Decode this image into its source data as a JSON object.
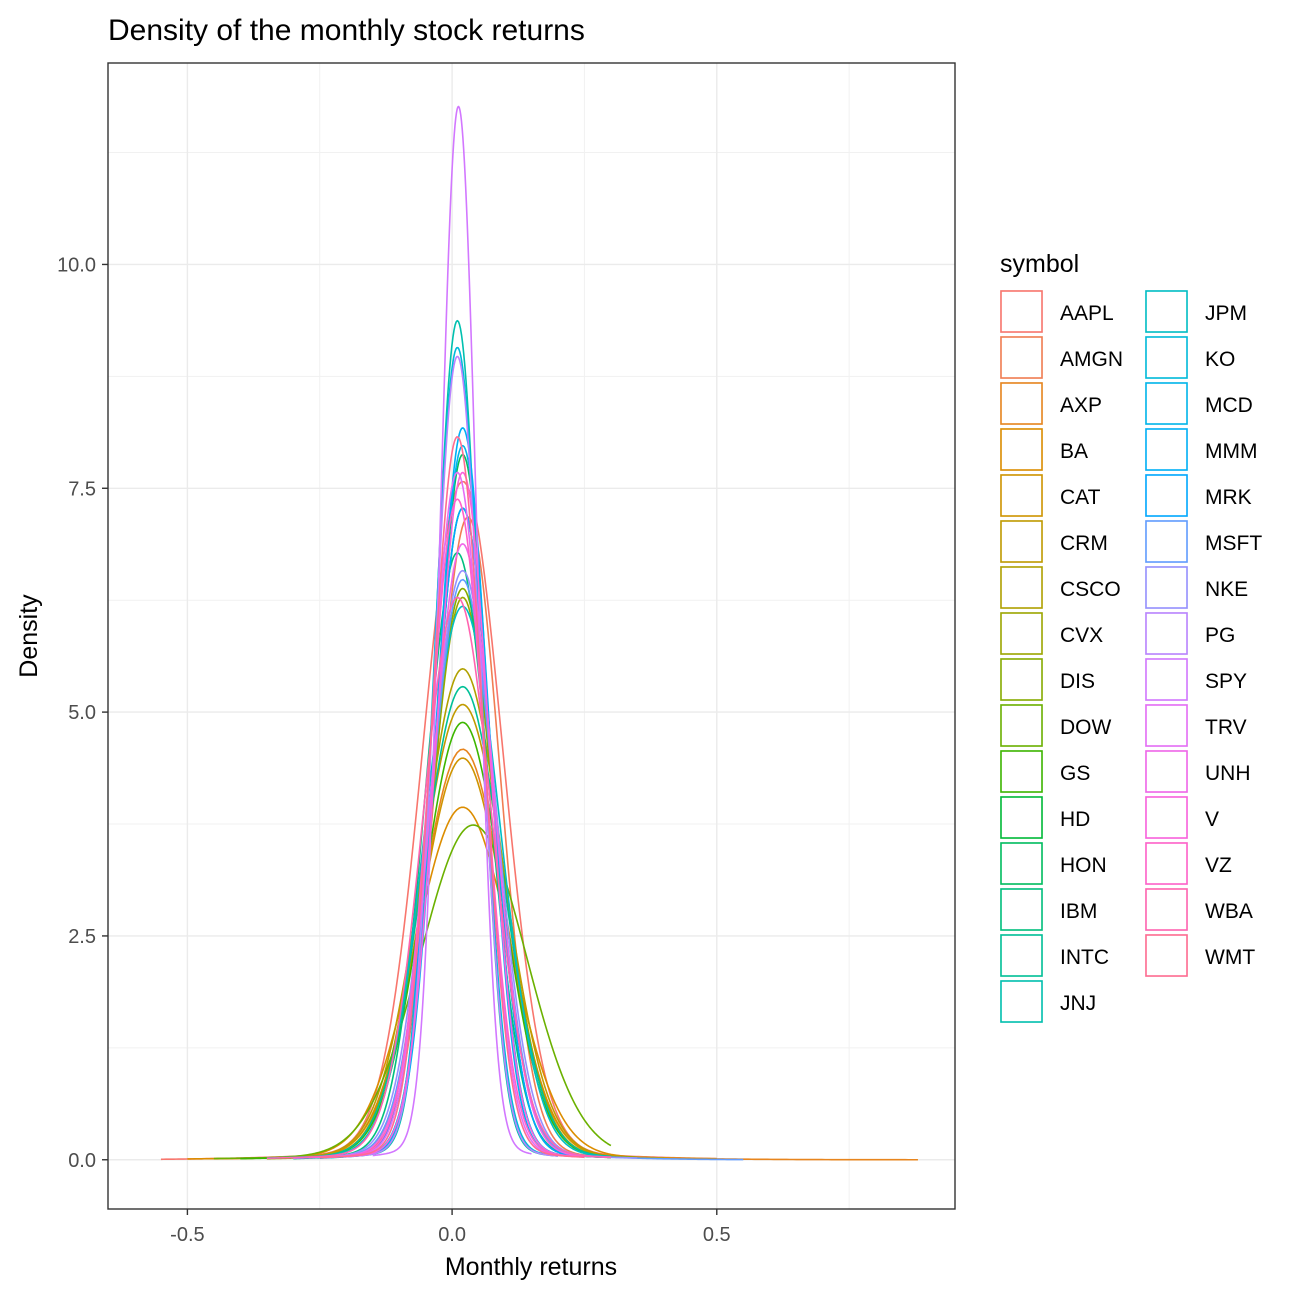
{
  "chart_data": {
    "type": "line",
    "title": "Density of the monthly stock returns",
    "xlabel": "Monthly returns",
    "ylabel": "Density",
    "xlim": [
      -0.65,
      0.95
    ],
    "ylim": [
      -0.55,
      12.25
    ],
    "xticks": [
      -0.5,
      0.0,
      0.5
    ],
    "xtick_labels": [
      "-0.5",
      "0.0",
      "0.5"
    ],
    "yticks": [
      0.0,
      2.5,
      5.0,
      7.5,
      10.0
    ],
    "ytick_labels": [
      "0.0",
      "2.5",
      "5.0",
      "7.5",
      "10.0"
    ],
    "grid": true,
    "legend": {
      "title": "symbol",
      "placement": "right",
      "columns": 2
    },
    "series": [
      {
        "name": "AAPL",
        "color": "#F8766D",
        "peak_x": 0.02,
        "peak_y": 7.6,
        "sd": 0.075,
        "xmin": -0.55,
        "xmax": 0.5
      },
      {
        "name": "AMGN",
        "color": "#F17D52",
        "peak_x": 0.03,
        "peak_y": 7.2,
        "sd": 0.06,
        "xmin": -0.3,
        "xmax": 0.3
      },
      {
        "name": "AXP",
        "color": "#E7851E",
        "peak_x": 0.02,
        "peak_y": 4.6,
        "sd": 0.08,
        "xmin": -0.45,
        "xmax": 0.88
      },
      {
        "name": "BA",
        "color": "#DC8D00",
        "peak_x": 0.02,
        "peak_y": 3.95,
        "sd": 0.09,
        "xmin": -0.5,
        "xmax": 0.5
      },
      {
        "name": "CAT",
        "color": "#CF9400",
        "peak_x": 0.02,
        "peak_y": 4.5,
        "sd": 0.08,
        "xmin": -0.4,
        "xmax": 0.45
      },
      {
        "name": "CRM",
        "color": "#C09B00",
        "peak_x": 0.02,
        "peak_y": 5.1,
        "sd": 0.08,
        "xmin": -0.35,
        "xmax": 0.4
      },
      {
        "name": "CSCO",
        "color": "#B0A100",
        "peak_x": 0.02,
        "peak_y": 5.5,
        "sd": 0.075,
        "xmin": -0.4,
        "xmax": 0.35
      },
      {
        "name": "CVX",
        "color": "#9DA700",
        "peak_x": 0.02,
        "peak_y": 6.3,
        "sd": 0.06,
        "xmin": -0.35,
        "xmax": 0.3
      },
      {
        "name": "DIS",
        "color": "#87AC00",
        "peak_x": 0.02,
        "peak_y": 6.4,
        "sd": 0.06,
        "xmin": -0.3,
        "xmax": 0.3
      },
      {
        "name": "DOW",
        "color": "#6BB100",
        "peak_x": 0.04,
        "peak_y": 3.75,
        "sd": 0.1,
        "xmin": -0.45,
        "xmax": 0.3
      },
      {
        "name": "GS",
        "color": "#3DB600",
        "peak_x": 0.02,
        "peak_y": 4.9,
        "sd": 0.075,
        "xmin": -0.4,
        "xmax": 0.35
      },
      {
        "name": "HD",
        "color": "#00BA38",
        "peak_x": 0.02,
        "peak_y": 7.3,
        "sd": 0.055,
        "xmin": -0.3,
        "xmax": 0.3
      },
      {
        "name": "HON",
        "color": "#00BD5F",
        "peak_x": 0.02,
        "peak_y": 7.9,
        "sd": 0.05,
        "xmin": -0.3,
        "xmax": 0.25
      },
      {
        "name": "IBM",
        "color": "#00BF7D",
        "peak_x": 0.01,
        "peak_y": 6.8,
        "sd": 0.06,
        "xmin": -0.3,
        "xmax": 0.3
      },
      {
        "name": "INTC",
        "color": "#00C097",
        "peak_x": 0.02,
        "peak_y": 5.3,
        "sd": 0.075,
        "xmin": -0.3,
        "xmax": 0.3
      },
      {
        "name": "JNJ",
        "color": "#00C0AF",
        "peak_x": 0.01,
        "peak_y": 9.4,
        "sd": 0.042,
        "xmin": -0.25,
        "xmax": 0.2
      },
      {
        "name": "JPM",
        "color": "#00BEC5",
        "peak_x": 0.02,
        "peak_y": 6.2,
        "sd": 0.07,
        "xmin": -0.35,
        "xmax": 0.3
      },
      {
        "name": "KO",
        "color": "#00BBDA",
        "peak_x": 0.01,
        "peak_y": 9.1,
        "sd": 0.044,
        "xmin": -0.2,
        "xmax": 0.2
      },
      {
        "name": "MCD",
        "color": "#00B6EB",
        "peak_x": 0.02,
        "peak_y": 8.0,
        "sd": 0.05,
        "xmin": -0.25,
        "xmax": 0.25
      },
      {
        "name": "MMM",
        "color": "#00B0F6",
        "peak_x": 0.02,
        "peak_y": 8.2,
        "sd": 0.048,
        "xmin": -0.25,
        "xmax": 0.25
      },
      {
        "name": "MRK",
        "color": "#00A8FF",
        "peak_x": 0.02,
        "peak_y": 7.3,
        "sd": 0.055,
        "xmin": -0.3,
        "xmax": 0.25
      },
      {
        "name": "MSFT",
        "color": "#619CFF",
        "peak_x": 0.02,
        "peak_y": 6.5,
        "sd": 0.06,
        "xmin": -0.3,
        "xmax": 0.55
      },
      {
        "name": "NKE",
        "color": "#9590FF",
        "peak_x": 0.02,
        "peak_y": 6.6,
        "sd": 0.062,
        "xmin": -0.3,
        "xmax": 0.35
      },
      {
        "name": "PG",
        "color": "#B983FF",
        "peak_x": 0.01,
        "peak_y": 9.0,
        "sd": 0.043,
        "xmin": -0.2,
        "xmax": 0.2
      },
      {
        "name": "SPY",
        "color": "#D277FF",
        "peak_x": 0.012,
        "peak_y": 11.8,
        "sd": 0.034,
        "xmin": -0.15,
        "xmax": 0.15
      },
      {
        "name": "TRV",
        "color": "#E46DF6",
        "peak_x": 0.01,
        "peak_y": 7.7,
        "sd": 0.05,
        "xmin": -0.25,
        "xmax": 0.25
      },
      {
        "name": "UNH",
        "color": "#F066E9",
        "peak_x": 0.02,
        "peak_y": 6.9,
        "sd": 0.058,
        "xmin": -0.3,
        "xmax": 0.3
      },
      {
        "name": "V",
        "color": "#F962DD",
        "peak_x": 0.02,
        "peak_y": 7.7,
        "sd": 0.05,
        "xmin": -0.25,
        "xmax": 0.25
      },
      {
        "name": "VZ",
        "color": "#FF61C9",
        "peak_x": 0.01,
        "peak_y": 7.4,
        "sd": 0.052,
        "xmin": -0.2,
        "xmax": 0.2
      },
      {
        "name": "WBA",
        "color": "#FF64B0",
        "peak_x": 0.01,
        "peak_y": 6.3,
        "sd": 0.065,
        "xmin": -0.35,
        "xmax": 0.3
      },
      {
        "name": "WMT",
        "color": "#FF6C91",
        "peak_x": 0.01,
        "peak_y": 8.1,
        "sd": 0.048,
        "xmin": -0.25,
        "xmax": 0.25
      }
    ]
  }
}
